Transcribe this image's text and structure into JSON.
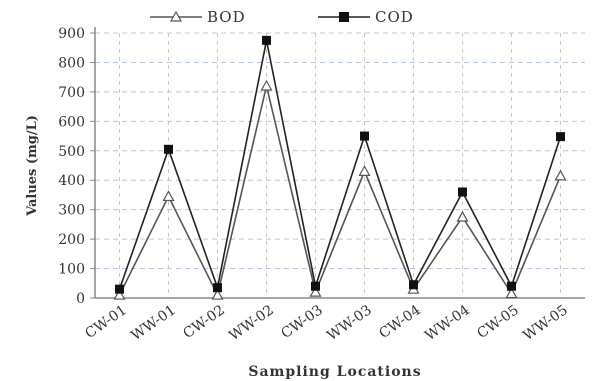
{
  "chart_data": {
    "type": "line",
    "title": "",
    "xlabel": "Sampling Locations",
    "ylabel": "Values (mg/L)",
    "categories": [
      "CW-01",
      "WW-01",
      "CW-02",
      "WW-02",
      "CW-03",
      "WW-03",
      "CW-04",
      "WW-04",
      "CW-05",
      "WW-05"
    ],
    "ylim": [
      0,
      900
    ],
    "yticks": [
      0,
      100,
      200,
      300,
      400,
      500,
      600,
      700,
      800,
      900
    ],
    "grid": "horizontal and vertical dashed",
    "legend_position": "top",
    "series": [
      {
        "name": "BOD",
        "marker": "triangle",
        "color": "#555555",
        "values": [
          10,
          345,
          10,
          720,
          20,
          430,
          30,
          275,
          15,
          415
        ]
      },
      {
        "name": "COD",
        "marker": "square",
        "color": "#222222",
        "values": [
          30,
          505,
          35,
          875,
          40,
          550,
          45,
          360,
          40,
          548
        ]
      }
    ]
  }
}
